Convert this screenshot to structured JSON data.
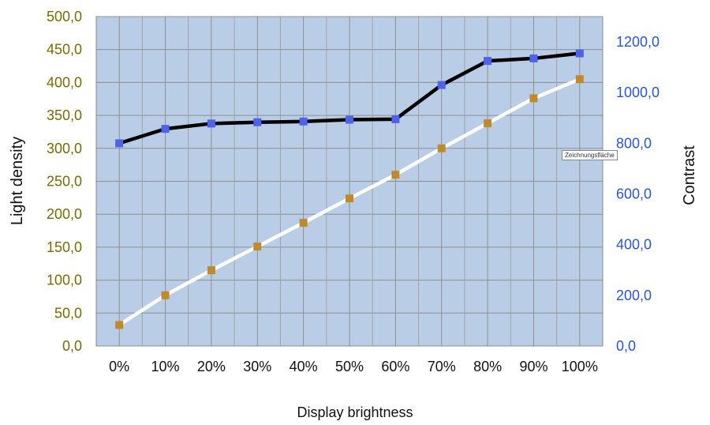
{
  "chart_data": {
    "type": "line",
    "xlabel": "Display brightness",
    "ylabel_left": "Light density",
    "ylabel_right": "Contrast",
    "categories": [
      "0%",
      "10%",
      "20%",
      "30%",
      "40%",
      "50%",
      "60%",
      "70%",
      "80%",
      "90%",
      "100%"
    ],
    "y_left": {
      "min": 0,
      "max": 500,
      "step": 50,
      "tick_labels": [
        "0,0",
        "50,0",
        "100,0",
        "150,0",
        "200,0",
        "250,0",
        "300,0",
        "350,0",
        "400,0",
        "450,0",
        "500,0"
      ]
    },
    "y_right": {
      "min": 0,
      "max": 1300,
      "step": 200,
      "tick_labels": [
        "0,0",
        "200,0",
        "400,0",
        "600,0",
        "800,0",
        "1000,0",
        "1200,0"
      ]
    },
    "series": [
      {
        "axis": "left",
        "line_color": "#ffffff",
        "marker_color": "#c08a2a",
        "values": [
          32,
          77,
          115,
          151,
          187,
          224,
          260,
          300,
          338,
          376,
          405
        ]
      },
      {
        "axis": "right",
        "line_color": "#000000",
        "marker_color": "#4d63e8",
        "values": [
          800,
          857,
          878,
          883,
          886,
          893,
          895,
          1030,
          1125,
          1135,
          1155
        ]
      }
    ],
    "grid": true,
    "plot_background": "#b9cde6"
  },
  "tooltip": {
    "text": "Zeichnungsfläche"
  }
}
